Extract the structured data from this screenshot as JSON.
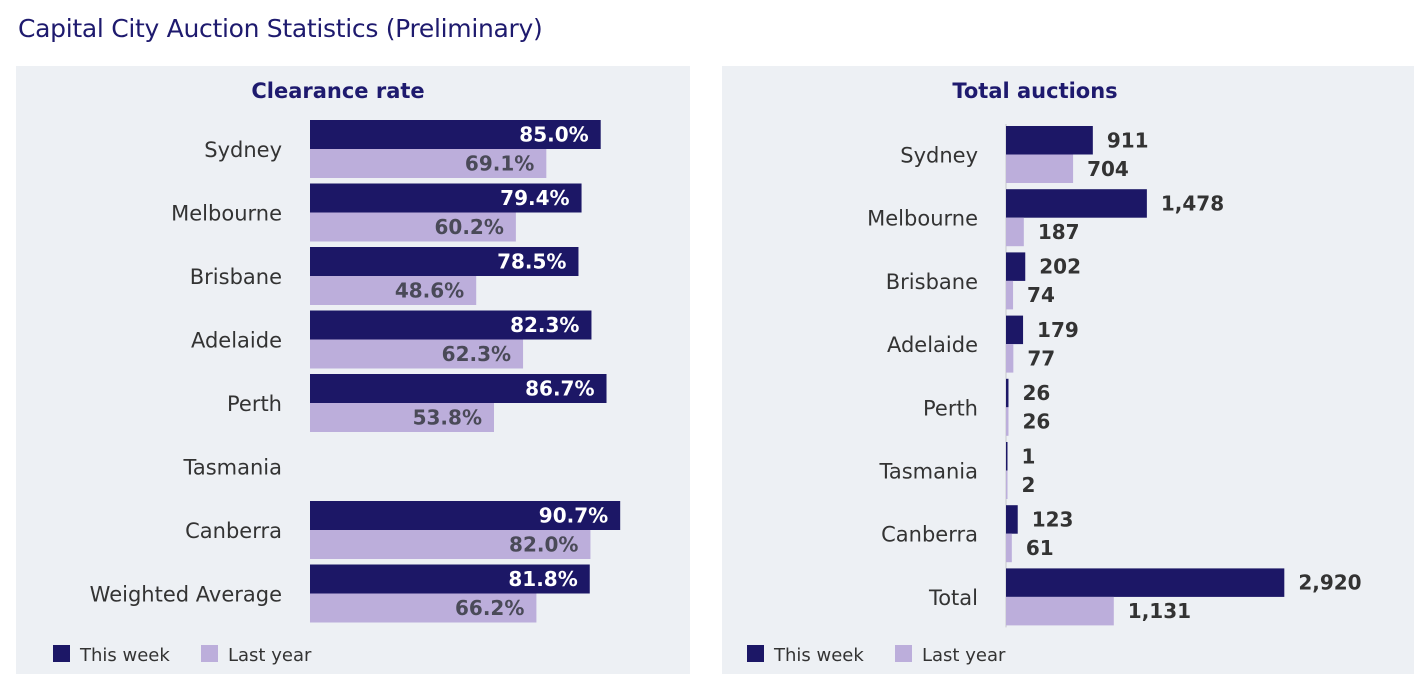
{
  "page_title": "Capital City Auction Statistics (Preliminary)",
  "colors": {
    "this_week": "#1c1766",
    "last_year": "#bcaedb",
    "panel_bg": "#edf0f4",
    "title": "#1e1a6e"
  },
  "legend": {
    "this_week": "This week",
    "last_year": "Last year"
  },
  "chart_data": [
    {
      "type": "bar",
      "orientation": "horizontal",
      "title": "Clearance rate",
      "categories": [
        "Sydney",
        "Melbourne",
        "Brisbane",
        "Adelaide",
        "Perth",
        "Tasmania",
        "Canberra",
        "Weighted Average"
      ],
      "series": [
        {
          "name": "This week",
          "values": [
            85.0,
            79.4,
            78.5,
            82.3,
            86.7,
            null,
            90.7,
            81.8
          ],
          "labels": [
            "85.0%",
            "79.4%",
            "78.5%",
            "82.3%",
            "86.7%",
            "",
            "90.7%",
            "81.8%"
          ]
        },
        {
          "name": "Last year",
          "values": [
            69.1,
            60.2,
            48.6,
            62.3,
            53.8,
            null,
            82.0,
            66.2
          ],
          "labels": [
            "69.1%",
            "60.2%",
            "48.6%",
            "62.3%",
            "53.8%",
            "",
            "82.0%",
            "66.2%"
          ]
        }
      ],
      "xlim": [
        0,
        100
      ],
      "legend_position": "bottom-left",
      "label_position": "inside-end"
    },
    {
      "type": "bar",
      "orientation": "horizontal",
      "title": "Total auctions",
      "categories": [
        "Sydney",
        "Melbourne",
        "Brisbane",
        "Adelaide",
        "Perth",
        "Tasmania",
        "Canberra",
        "Total"
      ],
      "series": [
        {
          "name": "This week",
          "values": [
            911,
            1478,
            202,
            179,
            26,
            1,
            123,
            2920
          ],
          "labels": [
            "911",
            "1,478",
            "202",
            "179",
            "26",
            "1",
            "123",
            "2,920"
          ]
        },
        {
          "name": "Last year",
          "values": [
            704,
            187,
            74,
            77,
            26,
            2,
            61,
            1131
          ],
          "labels": [
            "704",
            "187",
            "74",
            "77",
            "26",
            "2",
            "61",
            "1,131"
          ]
        }
      ],
      "xlim": [
        0,
        3200
      ],
      "legend_position": "bottom-left",
      "label_position": "outside-end"
    }
  ]
}
